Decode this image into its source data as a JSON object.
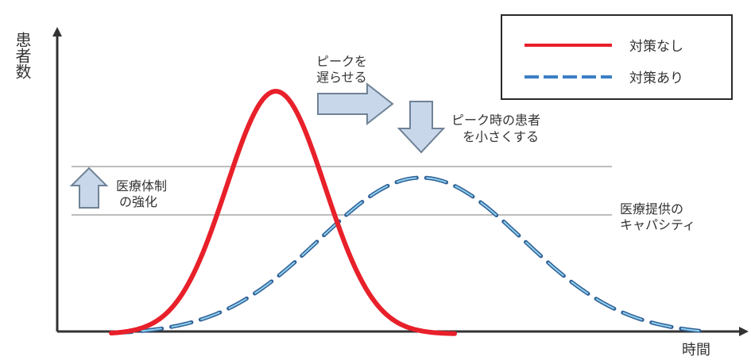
{
  "axes": {
    "y_label": "患者数",
    "x_label": "時間"
  },
  "legend": {
    "items": [
      {
        "label": "対策なし",
        "color": "#e8202a",
        "style": "solid"
      },
      {
        "label": "対策あり",
        "color": "#3b7fc4",
        "style": "dashed"
      }
    ]
  },
  "annotations": {
    "delay_peak": [
      "ピークを",
      "遅らせる"
    ],
    "lower_peak": [
      "ピーク時の患者",
      "を小さくする"
    ],
    "strengthen_system": [
      "医療体制",
      "の強化"
    ],
    "capacity": [
      "医療提供の",
      "キャパシティ"
    ]
  },
  "colors": {
    "no_measures": "#e8202a",
    "with_measures": "#2f5f95",
    "with_measures_inner": "#8fd0ee",
    "arrow_fill": "#c9d7ea",
    "arrow_stroke": "#6f8296",
    "capacity_line": "#bdbdbd",
    "axis": "#333333"
  }
}
